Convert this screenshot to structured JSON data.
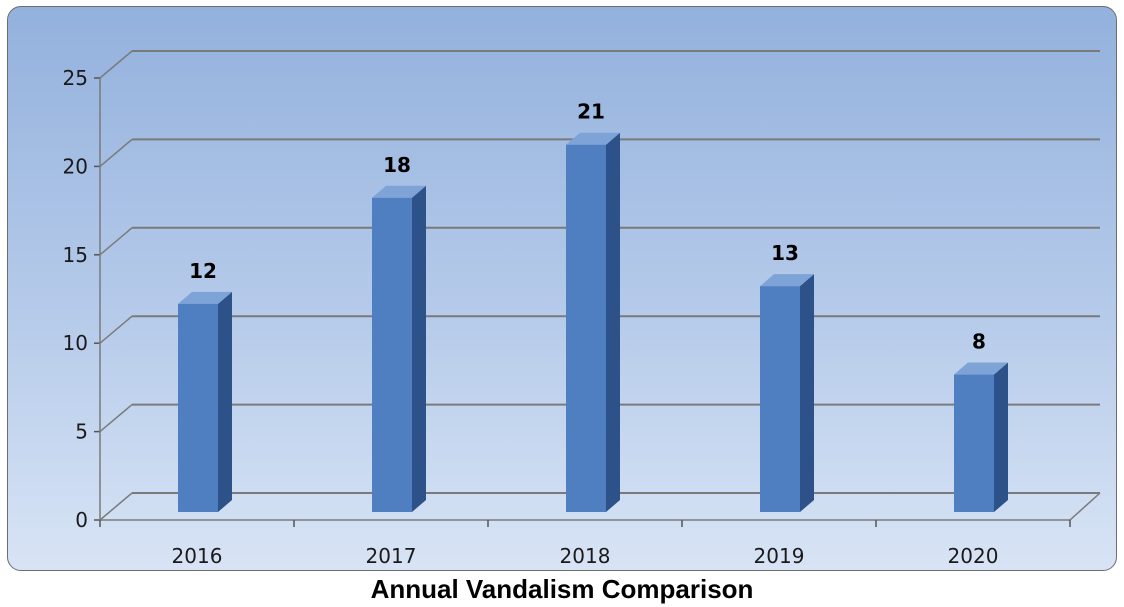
{
  "chart_data": {
    "type": "bar",
    "title": "Annual Vandalism Comparison",
    "categories": [
      "2016",
      "2017",
      "2018",
      "2019",
      "2020"
    ],
    "values": [
      12,
      18,
      21,
      13,
      8
    ],
    "data_labels": [
      "12",
      "18",
      "21",
      "13",
      "8"
    ],
    "ylim": [
      0,
      25
    ],
    "y_ticks": [
      "0",
      "5",
      "10",
      "15",
      "20",
      "25"
    ],
    "xlabel": "",
    "ylabel": "",
    "grid": true,
    "legend": "none",
    "style": "3d-column"
  },
  "colors": {
    "bar_front": "#4f7fc0",
    "bar_side": "#2c5289",
    "bar_top": "#7ea3d6",
    "grid": "#7a7a7a",
    "background_top": "#93b1dd",
    "background_bottom": "#d8e4f5"
  }
}
